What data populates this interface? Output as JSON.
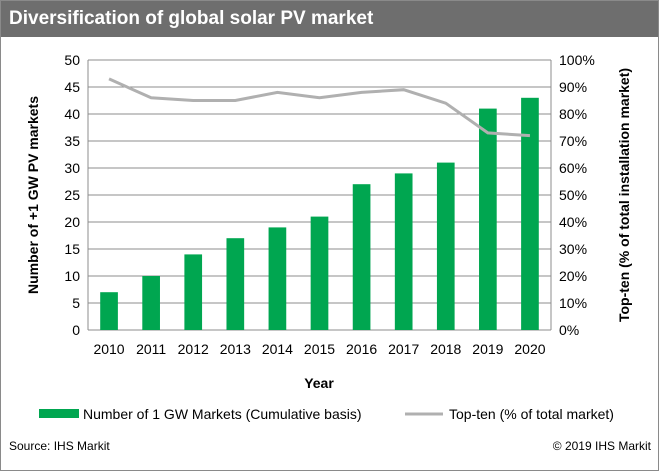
{
  "title": "Diversification of global solar PV market",
  "source": "Source: IHS Markit",
  "copyright": "© 2019 IHS Markit",
  "colors": {
    "bar": "#00a650",
    "line": "#b0b0b0",
    "header": "#6e6e6e"
  },
  "chart_data": {
    "type": "bar+line",
    "categories": [
      "2010",
      "2011",
      "2012",
      "2013",
      "2014",
      "2015",
      "2016",
      "2017",
      "2018",
      "2019",
      "2020"
    ],
    "series": [
      {
        "name": "Number of 1 GW Markets (Cumulative basis)",
        "type": "bar",
        "axis": "left",
        "values": [
          7,
          10,
          14,
          17,
          19,
          21,
          27,
          29,
          31,
          41,
          43
        ]
      },
      {
        "name": "Top-ten (% of total market)",
        "type": "line",
        "axis": "right",
        "values": [
          93,
          86,
          85,
          85,
          88,
          86,
          88,
          89,
          84,
          73,
          72
        ]
      }
    ],
    "xlabel": "Year",
    "ylabel": "Number of +1 GW PV markets",
    "y2label": "Top-ten (% of total installation  market)",
    "ylim": [
      0,
      50
    ],
    "yticks": [
      "0",
      "5",
      "10",
      "15",
      "20",
      "25",
      "30",
      "35",
      "40",
      "45",
      "50"
    ],
    "y2lim": [
      0,
      100
    ],
    "y2ticks": [
      "0%",
      "10%",
      "20%",
      "30%",
      "40%",
      "50%",
      "60%",
      "70%",
      "80%",
      "90%",
      "100%"
    ],
    "grid": true,
    "legend": "bottom"
  }
}
